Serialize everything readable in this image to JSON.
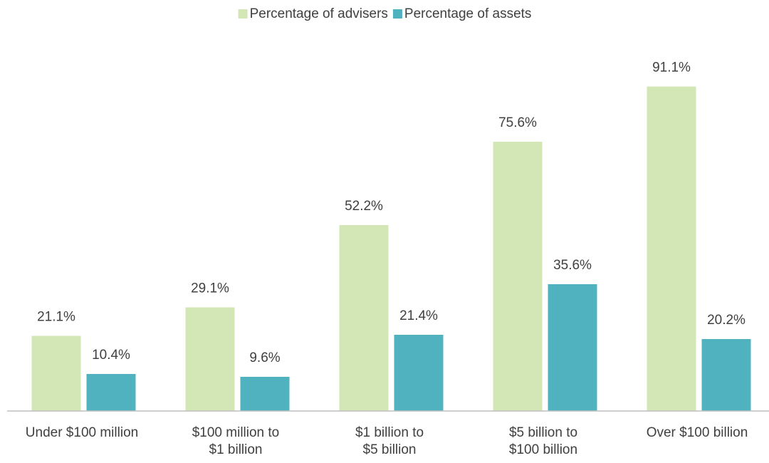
{
  "chart_data": {
    "type": "bar",
    "categories": [
      "Under $100 million",
      "$100 million to\n$1 billion",
      "$1 billion to\n$5 billion",
      "$5 billion to\n$100 billion",
      "Over $100 billion"
    ],
    "series": [
      {
        "name": "Percentage of advisers",
        "color": "#d3e7b6",
        "values": [
          21.1,
          29.1,
          52.2,
          75.6,
          91.1
        ],
        "value_labels": [
          "21.1%",
          "29.1%",
          "52.2%",
          "75.6%",
          "91.1%"
        ]
      },
      {
        "name": "Percentage of assets",
        "color": "#50b1bf",
        "values": [
          10.4,
          9.6,
          21.4,
          35.6,
          20.2
        ],
        "value_labels": [
          "10.4%",
          "9.6%",
          "21.4%",
          "35.6%",
          "20.2%"
        ]
      }
    ],
    "ylim": [
      0,
      100
    ],
    "legend": "top"
  }
}
